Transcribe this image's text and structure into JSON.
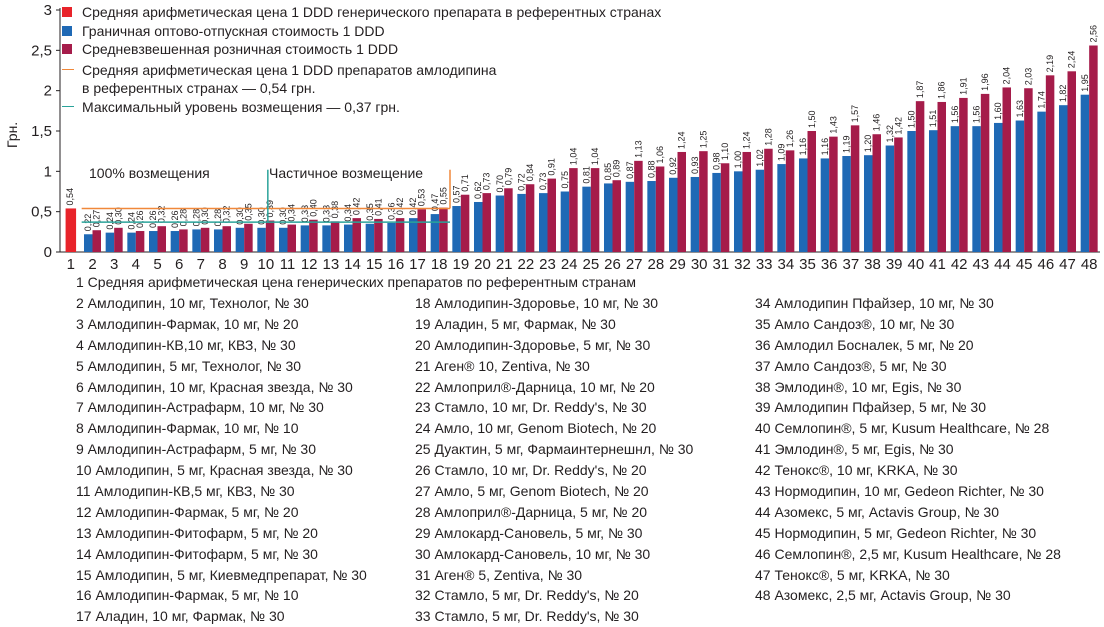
{
  "chart_data": {
    "type": "bar",
    "ylabel": "Грн.",
    "ylim": [
      0,
      3
    ],
    "yticks": [
      "0",
      "0,5",
      "1",
      "1,5",
      "2",
      "2,5",
      "3"
    ],
    "categories": [
      "1",
      "2",
      "3",
      "4",
      "5",
      "6",
      "7",
      "8",
      "9",
      "10",
      "11",
      "12",
      "13",
      "14",
      "15",
      "16",
      "17",
      "18",
      "19",
      "20",
      "21",
      "22",
      "23",
      "24",
      "25",
      "26",
      "27",
      "28",
      "29",
      "30",
      "31",
      "32",
      "33",
      "34",
      "35",
      "36",
      "37",
      "38",
      "39",
      "40",
      "41",
      "42",
      "43",
      "44",
      "45",
      "46",
      "47",
      "48"
    ],
    "first_bar": {
      "name": "Средняя арифметическая цена 1 DDD генерического препарата в референтных странах",
      "value": 0.54,
      "label": "0,54",
      "color": "#e8232a"
    },
    "series": [
      {
        "name": "Граничная оптово-отпускная стоимость 1 DDD",
        "color": "#1f69b5",
        "values": [
          null,
          0.22,
          0.24,
          0.24,
          0.26,
          0.26,
          0.28,
          0.28,
          0.3,
          0.3,
          0.3,
          0.33,
          0.33,
          0.34,
          0.35,
          0.36,
          0.42,
          0.47,
          0.57,
          0.62,
          0.7,
          0.72,
          0.73,
          0.75,
          0.81,
          0.85,
          0.87,
          0.88,
          0.92,
          0.93,
          0.98,
          1.0,
          1.02,
          1.09,
          1.16,
          1.16,
          1.19,
          1.2,
          1.32,
          1.5,
          1.51,
          1.56,
          1.56,
          1.6,
          1.63,
          1.74,
          1.82,
          1.95
        ],
        "labels": [
          "",
          "0,22",
          "0,24",
          "0,24",
          "0,26",
          "0,26",
          "0,28",
          "0,28",
          "0,30",
          "0,30",
          "0,30",
          "0,33",
          "0,33",
          "0,34",
          "0,35",
          "0,36",
          "0,42",
          "0,47",
          "0,57",
          "0,62",
          "0,70",
          "0,72",
          "0,73",
          "0,75",
          "0,81",
          "0,85",
          "0,87",
          "0,88",
          "0,92",
          "0,93",
          "0,98",
          "1,00",
          "1,02",
          "1,09",
          "1,16",
          "1,16",
          "1,19",
          "1,20",
          "1,32",
          "1,50",
          "1,51",
          "1,56",
          "1,56",
          "1,60",
          "1,63",
          "1,74",
          "1,82",
          "1,95"
        ]
      },
      {
        "name": "Средневзвешенная розничная стоимость 1 DDD",
        "color": "#a51c4a",
        "values": [
          null,
          0.27,
          0.3,
          0.26,
          0.32,
          0.28,
          0.3,
          0.32,
          0.35,
          0.39,
          0.34,
          0.4,
          0.38,
          0.42,
          0.41,
          0.42,
          0.53,
          0.55,
          0.71,
          0.73,
          0.79,
          0.84,
          0.91,
          1.04,
          1.04,
          0.89,
          1.13,
          1.06,
          1.24,
          1.25,
          1.1,
          1.24,
          1.28,
          1.26,
          1.5,
          1.43,
          1.57,
          1.46,
          1.42,
          1.87,
          1.86,
          1.91,
          1.96,
          2.04,
          2.03,
          2.19,
          2.24,
          2.56
        ],
        "labels": [
          "",
          "0,27",
          "0,30",
          "0,26",
          "0,32",
          "0,28",
          "0,30",
          "0,32",
          "0,35",
          "0,39",
          "0,34",
          "0,40",
          "0,38",
          "0,42",
          "0,41",
          "0,42",
          "0,53",
          "0,55",
          "0,71",
          "0,73",
          "0,79",
          "0,84",
          "0,91",
          "1,04",
          "1,04",
          "0,89",
          "1,13",
          "1,06",
          "1,24",
          "1,25",
          "1,10",
          "1,24",
          "1,28",
          "1,26",
          "1,50",
          "1,43",
          "1,57",
          "1,46",
          "1,42",
          "1,87",
          "1,86",
          "1,91",
          "1,96",
          "2,04",
          "2,03",
          "2,19",
          "2,24",
          "2,56"
        ]
      }
    ],
    "reference_lines": [
      {
        "name": "Средняя арифметическая цена 1 DDD препаратов амлодипина в референтных странах — 0,54 грн.",
        "line1": "Средняя арифметическая цена 1 DDD препаратов амлодипина",
        "line2": "в референтных странах — 0,54 грн.",
        "value": 0.54,
        "color": "#f0883a"
      },
      {
        "name": "Максимальный уровень возмещения — 0,37 грн.",
        "value": 0.37,
        "color": "#2aa39a"
      }
    ],
    "zones": [
      {
        "label": "100%  возмещения"
      },
      {
        "label": "Частичное возмещение"
      }
    ],
    "legend_position": "top-left",
    "grid": false
  },
  "footer_items": [
    [
      "1 Средняя арифметическая цена генерических препаратов по референтным странам"
    ],
    [
      "2 Амлодипин, 10 мг, Технолог, № 30",
      "3 Амлодипин-Фармак, 10 мг, № 20",
      "4 Амлодипин-КВ,10 мг, КВЗ, № 30",
      "5 Амлодипин, 5 мг, Технолог, № 30",
      "6 Амлодипин, 10 мг, Красная звезда, № 30",
      "7 Амлодипин-Астрафарм, 10 мг, № 30",
      "8 Амлодипин-Фармак, 10 мг, № 10",
      "9 Амлодипин-Астрафарм, 5 мг, № 30",
      "10 Амлодипин, 5 мг, Красная звезда, № 30",
      "11 Амлодипин-КВ,5 мг, КВЗ, № 30",
      "12 Амлодипин-Фармак, 5 мг, № 20",
      "13 Амлодипин-Фитофарм, 5 мг, № 20",
      "14 Амлодипин-Фитофарм, 5 мг, № 30",
      "15 Амлодипин, 5 мг, Киевмедпрепарат, № 30",
      "16 Амлодипин-Фармак, 5 мг, № 10",
      "17 Аладин, 10 мг, Фармак, № 30"
    ],
    [
      "18 Амлодипин-Здоровье, 10 мг, № 30",
      "19 Аладин, 5 мг, Фармак, № 30",
      "20 Амлодипин-Здоровье, 5 мг, № 30",
      "21 Аген® 10, Zentiva, № 30",
      "22 Амлоприл®-Дарница, 10 мг, № 20",
      "23 Стамло, 10 мг, Dr. Reddy's, № 30",
      "24 Амло, 10 мг, Genom Biotech, № 20",
      "25 Дуактин, 5 мг, Фармаинтернешнл, № 30",
      "26 Стамло, 10 мг, Dr. Reddy's, № 20",
      "27 Амло, 5 мг, Genom Biotech, № 20",
      "28 Амлоприл®-Дарница, 5 мг, № 20",
      "29 Амлокард-Сановель, 5 мг, № 30",
      "30 Амлокард-Сановель, 10 мг, № 30",
      "31 Аген® 5, Zentiva, № 30",
      "32 Стамло, 5 мг, Dr. Reddy's, № 20",
      "33 Стамло, 5 мг, Dr. Reddy's, № 30"
    ],
    [
      "34 Амлодипин Пфайзер, 10 мг, № 30",
      "35 Амло Сандоз®, 10 мг, № 30",
      "36 Амлодил Босналек, 5 мг, № 20",
      "37 Амло Сандоз®, 5 мг, № 30",
      "38 Эмлодин®, 10 мг, Egis, № 30",
      "39 Амлодипин Пфайзер, 5 мг, № 30",
      "40 Семлопин®, 5 мг, Kusum Healthcare, № 28",
      "41 Эмлодин®, 5 мг, Egis, № 30",
      "42 Тенокс®, 10 мг, KRKA, № 30",
      "43 Нормодипин, 10 мг, Gedeon Richter, № 30",
      "44 Азомекс, 5 мг, Actavis Group, № 30",
      "45 Нормодипин, 5 мг, Gedeon Richter, № 30",
      "46 Семлопин®, 2,5 мг, Kusum Healthcare, № 28",
      "47 Тенокс®, 5 мг, KRKA, № 30",
      "48 Азомекс, 2,5 мг, Actavis Group, № 30"
    ]
  ]
}
